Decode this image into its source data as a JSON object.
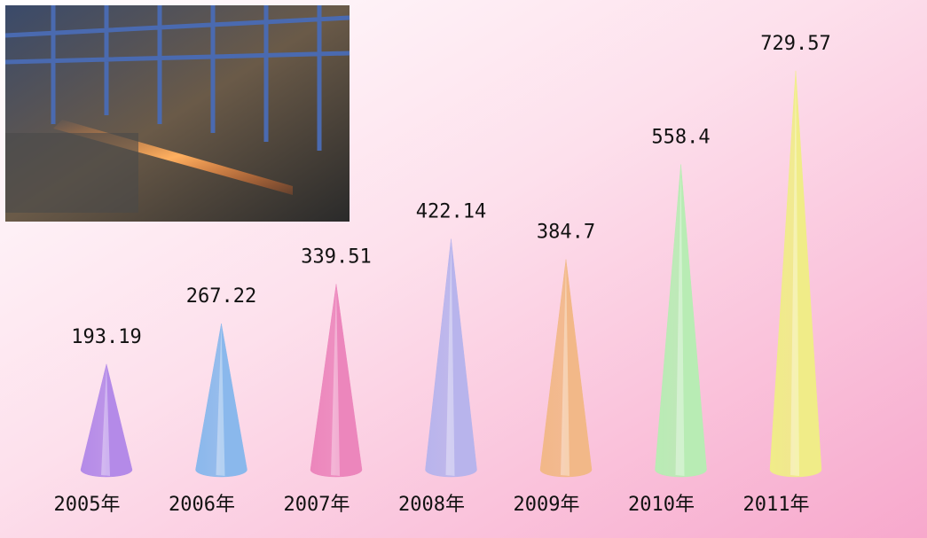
{
  "chart_data": {
    "type": "cone",
    "categories": [
      "2005年",
      "2006年",
      "2007年",
      "2008年",
      "2009年",
      "2010年",
      "2011年"
    ],
    "values": [
      193.19,
      267.22,
      339.51,
      422.14,
      384.7,
      558.4,
      729.57
    ],
    "colors": [
      "#b48ae8",
      "#8ab8ec",
      "#ec86bc",
      "#b8b4ec",
      "#f2b888",
      "#b8ecb4",
      "#f0ec88"
    ]
  }
}
